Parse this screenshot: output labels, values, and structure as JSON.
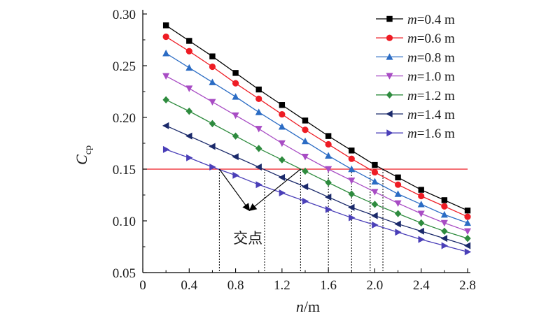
{
  "chart_data": {
    "type": "line",
    "xlabel": {
      "var": "n",
      "unit": "/m"
    },
    "ylabel": {
      "var": "C",
      "sub": "cp"
    },
    "xlim": [
      0,
      2.8
    ],
    "ylim": [
      0.05,
      0.3
    ],
    "xticks": [
      "0",
      "0.4",
      "0.8",
      "1.2",
      "1.6",
      "2.0",
      "2.4",
      "2.8"
    ],
    "yticks": [
      "0.05",
      "0.10",
      "0.15",
      "0.20",
      "0.25",
      "0.30"
    ],
    "grid": false,
    "legend_position": "top-right",
    "x": [
      0.2,
      0.4,
      0.6,
      0.8,
      1.0,
      1.2,
      1.4,
      1.6,
      1.8,
      2.0,
      2.2,
      2.4,
      2.6,
      2.8
    ],
    "series": [
      {
        "var": "m",
        "value": "=0.4 m",
        "color": "#000000",
        "marker": "square",
        "values": [
          0.289,
          0.274,
          0.259,
          0.243,
          0.227,
          0.212,
          0.197,
          0.182,
          0.168,
          0.154,
          0.142,
          0.13,
          0.12,
          0.11
        ]
      },
      {
        "var": "m",
        "value": "=0.6 m",
        "color": "#ee1c24",
        "marker": "circle",
        "values": [
          0.278,
          0.264,
          0.249,
          0.233,
          0.218,
          0.203,
          0.188,
          0.174,
          0.16,
          0.147,
          0.135,
          0.124,
          0.114,
          0.104
        ]
      },
      {
        "var": "m",
        "value": "=0.8 m",
        "color": "#2b6cc4",
        "marker": "triangle-up",
        "values": [
          0.262,
          0.248,
          0.234,
          0.22,
          0.205,
          0.191,
          0.177,
          0.163,
          0.15,
          0.138,
          0.126,
          0.116,
          0.106,
          0.098
        ]
      },
      {
        "var": "m",
        "value": "=1.0 m",
        "color": "#a84cc4",
        "marker": "triangle-down",
        "values": [
          0.24,
          0.228,
          0.215,
          0.202,
          0.189,
          0.175,
          0.162,
          0.15,
          0.139,
          0.128,
          0.117,
          0.107,
          0.098,
          0.09
        ]
      },
      {
        "var": "m",
        "value": "=1.2 m",
        "color": "#2e8b3e",
        "marker": "diamond",
        "values": [
          0.217,
          0.206,
          0.194,
          0.182,
          0.17,
          0.159,
          0.148,
          0.137,
          0.126,
          0.116,
          0.107,
          0.098,
          0.09,
          0.083
        ]
      },
      {
        "var": "m",
        "value": "=1.4 m",
        "color": "#1b2a6b",
        "marker": "triangle-left",
        "values": [
          0.192,
          0.182,
          0.172,
          0.162,
          0.152,
          0.142,
          0.133,
          0.123,
          0.113,
          0.105,
          0.097,
          0.09,
          0.083,
          0.076
        ]
      },
      {
        "var": "m",
        "value": "=1.6 m",
        "color": "#4a3fb8",
        "marker": "triangle-right",
        "values": [
          0.169,
          0.161,
          0.152,
          0.144,
          0.135,
          0.127,
          0.119,
          0.111,
          0.103,
          0.096,
          0.089,
          0.082,
          0.076,
          0.07
        ]
      }
    ],
    "reference_line": {
      "y": 0.15,
      "color": "#ee1c24"
    },
    "intersection_x": [
      0.66,
      1.05,
      1.36,
      1.6,
      1.8,
      1.96,
      2.07
    ],
    "annotation": {
      "text": "交点",
      "at": [
        0.96,
        0.1
      ],
      "arrow_from": [
        0.92,
        0.11
      ],
      "arrow_targets": [
        [
          0.66,
          0.15
        ],
        [
          1.36,
          0.15
        ]
      ]
    }
  }
}
